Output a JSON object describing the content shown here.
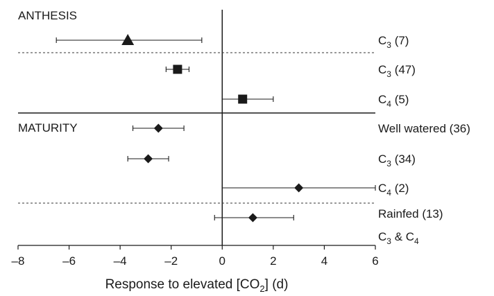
{
  "chart_data": {
    "type": "forest",
    "xlabel": "Response to elevated [CO2] (d)",
    "xlim": [
      -8,
      6
    ],
    "xticks": [
      -8,
      -6,
      -4,
      -2,
      0,
      2,
      4,
      6
    ],
    "xtick_labels": [
      "–8",
      "–6",
      "–4",
      "–2",
      "0",
      "2",
      "4",
      "6"
    ],
    "grid": false,
    "sections": [
      {
        "label": "ANTHESIS"
      },
      {
        "label": "MATURITY"
      }
    ],
    "rows": [
      {
        "section": "ANTHESIS",
        "group": "C3",
        "n": "7",
        "marker": "triangle",
        "value": -3.7,
        "ci": [
          -6.5,
          -0.8
        ]
      },
      {
        "section": "ANTHESIS",
        "group": "C3",
        "n": "47",
        "marker": "square",
        "value": -1.75,
        "ci": [
          -2.2,
          -1.3
        ]
      },
      {
        "section": "ANTHESIS",
        "group": "C4",
        "n": "5",
        "marker": "square",
        "value": 0.8,
        "ci": [
          0,
          2.0
        ]
      },
      {
        "section": "MATURITY",
        "group": "Well watered",
        "n": "36",
        "marker": "diamond",
        "value": -2.5,
        "ci": [
          -3.5,
          -1.5
        ]
      },
      {
        "section": "MATURITY",
        "group": "C3",
        "n": "34",
        "marker": "diamond",
        "value": -2.9,
        "ci": [
          -3.7,
          -2.1
        ]
      },
      {
        "section": "MATURITY",
        "group": "C4",
        "n": "2",
        "marker": "diamond",
        "value": 3.0,
        "ci": [
          0,
          6.0
        ]
      },
      {
        "section": "MATURITY",
        "group": "Rainfed / C3 & C4",
        "n": "13",
        "marker": "diamond",
        "value": 1.2,
        "ci": [
          -0.3,
          2.8
        ]
      }
    ],
    "row_labels": [
      {
        "text": "C",
        "sub": "3",
        "suffix": " (7)"
      },
      {
        "text": "C",
        "sub": "3",
        "suffix": " (47)"
      },
      {
        "text": "C",
        "sub": "4",
        "suffix": " (5)"
      },
      {
        "text": "Well watered (36)",
        "sub": "",
        "suffix": ""
      },
      {
        "text": "C",
        "sub": "3",
        "suffix": " (34)"
      },
      {
        "text": "C",
        "sub": "4",
        "suffix": " (2)"
      },
      {
        "text": "Rainfed (13)",
        "sub": "",
        "suffix": ""
      },
      {
        "text": "C",
        "sub": "3",
        "suffix": " & C",
        "sub2": "4"
      }
    ],
    "xlabel_parts": {
      "pre": "Response to elevated [CO",
      "sub": "2",
      "post": "] (d)"
    }
  }
}
